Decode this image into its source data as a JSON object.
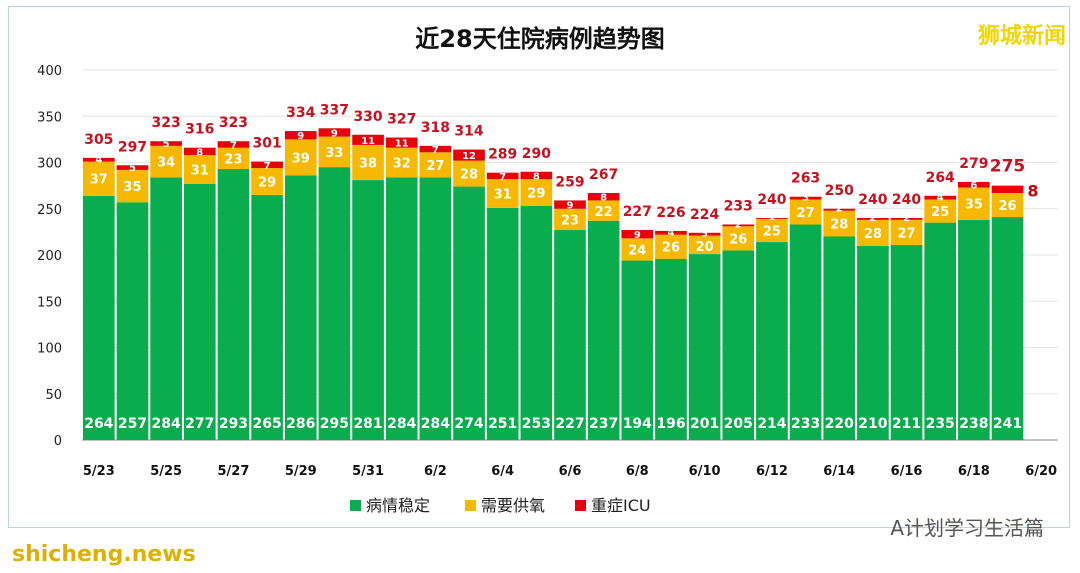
{
  "watermarks": {
    "top_right": "狮城新闻",
    "bottom_right": "A计划学习生活篇",
    "bottom_left": "shicheng.news"
  },
  "chart_data": {
    "type": "bar",
    "stacked": true,
    "title": "近28天住院病例趋势图",
    "xlabel": "",
    "ylabel": "",
    "ylim": [
      0,
      400
    ],
    "yticks": [
      0,
      50,
      100,
      150,
      200,
      250,
      300,
      350,
      400
    ],
    "categories": [
      "5/23",
      "5/24",
      "5/25",
      "5/26",
      "5/27",
      "5/28",
      "5/29",
      "5/30",
      "5/31",
      "6/1",
      "6/2",
      "6/3",
      "6/4",
      "6/5",
      "6/6",
      "6/7",
      "6/8",
      "6/9",
      "6/10",
      "6/11",
      "6/12",
      "6/13",
      "6/14",
      "6/15",
      "6/16",
      "6/17",
      "6/18",
      "6/19"
    ],
    "xtick_labels": [
      "5/23",
      "5/25",
      "5/27",
      "5/29",
      "5/31",
      "6/2",
      "6/4",
      "6/6",
      "6/8",
      "6/10",
      "6/12",
      "6/14",
      "6/16",
      "6/18",
      "6/20"
    ],
    "series": [
      {
        "name": "病情稳定",
        "color": "#0aad4e",
        "values": [
          264,
          257,
          284,
          277,
          293,
          265,
          286,
          295,
          281,
          284,
          284,
          274,
          251,
          253,
          227,
          237,
          194,
          196,
          201,
          205,
          214,
          233,
          220,
          210,
          211,
          235,
          238,
          241
        ]
      },
      {
        "name": "需要供氧",
        "color": "#f7b900",
        "values": [
          37,
          35,
          34,
          31,
          23,
          29,
          39,
          33,
          38,
          32,
          27,
          28,
          31,
          29,
          23,
          22,
          24,
          26,
          20,
          26,
          25,
          27,
          28,
          28,
          27,
          25,
          35,
          26
        ]
      },
      {
        "name": "重症ICU",
        "color": "#e8000b",
        "values": [
          4,
          5,
          5,
          8,
          7,
          7,
          9,
          9,
          11,
          11,
          7,
          12,
          7,
          8,
          9,
          8,
          9,
          4,
          3,
          2,
          1,
          3,
          2,
          2,
          2,
          4,
          6,
          8
        ]
      }
    ],
    "totals": [
      305,
      297,
      323,
      316,
      323,
      301,
      334,
      337,
      330,
      327,
      318,
      314,
      289,
      290,
      259,
      267,
      227,
      226,
      224,
      233,
      240,
      263,
      250,
      240,
      240,
      264,
      279,
      275
    ],
    "legend": "bottom"
  }
}
